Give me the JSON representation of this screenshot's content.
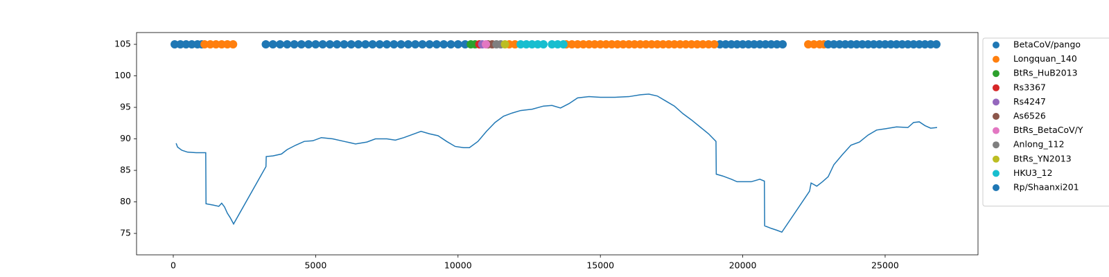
{
  "chart_data": {
    "type": "line",
    "color": "#1f77b4",
    "x": [
      100,
      150,
      300,
      500,
      800,
      1140,
      1150,
      1400,
      1600,
      1700,
      1800,
      1900,
      2000,
      2118,
      3255,
      3265,
      3500,
      3800,
      4000,
      4300,
      4600,
      4900,
      5200,
      5600,
      6000,
      6400,
      6800,
      7100,
      7500,
      7800,
      8100,
      8400,
      8700,
      9000,
      9300,
      9600,
      9900,
      10200,
      10400,
      10700,
      11000,
      11300,
      11600,
      11900,
      12200,
      12600,
      13000,
      13300,
      13600,
      13900,
      14200,
      14600,
      15000,
      15500,
      16000,
      16400,
      16700,
      17000,
      17300,
      17600,
      17900,
      18200,
      18500,
      18800,
      19060,
      19070,
      19300,
      19600,
      19800,
      20000,
      20300,
      20600,
      20760,
      20770,
      21000,
      21200,
      21373,
      22346,
      22400,
      22600,
      22800,
      23000,
      23200,
      23500,
      23800,
      24100,
      24400,
      24700,
      25000,
      25400,
      25800,
      26000,
      26200,
      26400,
      26600,
      26825
    ],
    "values": [
      89.3,
      88.7,
      88.2,
      87.9,
      87.8,
      87.8,
      79.7,
      79.5,
      79.3,
      79.8,
      79.2,
      78.2,
      77.5,
      76.5,
      85.6,
      87.2,
      87.3,
      87.6,
      88.3,
      89.0,
      89.6,
      89.7,
      90.2,
      90.0,
      89.6,
      89.2,
      89.5,
      90.0,
      90.0,
      89.8,
      90.2,
      90.7,
      91.2,
      90.8,
      90.5,
      89.6,
      88.8,
      88.6,
      88.6,
      89.6,
      91.2,
      92.6,
      93.6,
      94.1,
      94.5,
      94.7,
      95.2,
      95.3,
      94.9,
      95.6,
      96.5,
      96.7,
      96.6,
      96.6,
      96.7,
      97.0,
      97.1,
      96.8,
      96.0,
      95.2,
      94.0,
      93.0,
      91.9,
      90.8,
      89.6,
      84.4,
      84.1,
      83.6,
      83.2,
      83.2,
      83.2,
      83.6,
      83.3,
      76.2,
      75.8,
      75.5,
      75.2,
      81.7,
      83.0,
      82.5,
      83.2,
      84.0,
      85.9,
      87.5,
      89.0,
      89.5,
      90.6,
      91.4,
      91.6,
      91.9,
      91.8,
      92.6,
      92.7,
      92.1,
      91.7,
      91.8
    ],
    "scatter": [
      {
        "name": "BetaCoV/pango",
        "color": "#1f77b4",
        "x": [
          50,
          250,
          450,
          650,
          850,
          1000,
          3250,
          3500,
          3750,
          4000,
          4250,
          4500,
          4750,
          5000,
          5250,
          5500,
          5750,
          6000,
          6250,
          6500,
          6750,
          7000,
          7250,
          7500,
          7750,
          8000,
          8250,
          8500,
          8750,
          9000,
          9250,
          9500,
          9750,
          10000,
          10250,
          19200,
          19400,
          19600,
          19800,
          20000,
          20200,
          20400,
          20600,
          20800,
          21000,
          21200,
          21400
        ],
        "values": [
          105,
          105,
          105,
          105,
          105,
          105,
          105,
          105,
          105,
          105,
          105,
          105,
          105,
          105,
          105,
          105,
          105,
          105,
          105,
          105,
          105,
          105,
          105,
          105,
          105,
          105,
          105,
          105,
          105,
          105,
          105,
          105,
          105,
          105,
          105,
          105,
          105,
          105,
          105,
          105,
          105,
          105,
          105,
          105,
          105,
          105,
          105
        ]
      },
      {
        "name": "Longquan_140",
        "color": "#ff7f0e",
        "x": [
          1100,
          1300,
          1500,
          1700,
          1900,
          2100,
          11800,
          12000,
          13800,
          14000,
          14200,
          14400,
          14600,
          14800,
          15000,
          15200,
          15400,
          15600,
          15800,
          16000,
          16200,
          16400,
          16600,
          16800,
          17000,
          17200,
          17400,
          17600,
          17800,
          18000,
          18200,
          18400,
          18600,
          18800,
          19000,
          22300,
          22500,
          22700,
          22850
        ],
        "values": [
          105,
          105,
          105,
          105,
          105,
          105,
          105,
          105,
          105,
          105,
          105,
          105,
          105,
          105,
          105,
          105,
          105,
          105,
          105,
          105,
          105,
          105,
          105,
          105,
          105,
          105,
          105,
          105,
          105,
          105,
          105,
          105,
          105,
          105,
          105,
          105,
          105,
          105,
          105
        ]
      },
      {
        "name": "BtRs_HuB2013",
        "color": "#2ca02c",
        "x": [
          10450,
          10600
        ],
        "values": [
          105,
          105
        ]
      },
      {
        "name": "Rs3367",
        "color": "#d62728",
        "x": [
          10750
        ],
        "values": [
          105
        ]
      },
      {
        "name": "Rs4247",
        "color": "#9467bd",
        "x": [
          10850
        ],
        "values": [
          105
        ]
      },
      {
        "name": "As6526",
        "color": "#8c564b",
        "x": [
          11050,
          11200
        ],
        "values": [
          105,
          105
        ]
      },
      {
        "name": "BtRs_BetaCoV/Y",
        "color": "#e377c2",
        "x": [
          10980
        ],
        "values": [
          105
        ]
      },
      {
        "name": "Anlong_112",
        "color": "#7f7f7f",
        "x": [
          11350,
          11500
        ],
        "values": [
          105,
          105
        ]
      },
      {
        "name": "BtRs_YN2013",
        "color": "#bcbd22",
        "x": [
          11650
        ],
        "values": [
          105
        ]
      },
      {
        "name": "HKU3_12",
        "color": "#17becf",
        "x": [
          12200,
          12400,
          12600,
          12800,
          13000,
          13300,
          13500,
          13700
        ],
        "values": [
          105,
          105,
          105,
          105,
          105,
          105,
          105,
          105
        ]
      },
      {
        "name": "Rp/Shaanxi201",
        "color": "#1f77b4",
        "x": [
          23000,
          23200,
          23400,
          23600,
          23800,
          24000,
          24200,
          24400,
          24600,
          24800,
          25000,
          25200,
          25400,
          25600,
          25800,
          26000,
          26200,
          26400,
          26600,
          26800
        ],
        "values": [
          105,
          105,
          105,
          105,
          105,
          105,
          105,
          105,
          105,
          105,
          105,
          105,
          105,
          105,
          105,
          105,
          105,
          105,
          105,
          105
        ]
      }
    ],
    "xlim": [
      -1290,
      28262
    ],
    "ylim": [
      71.6,
      106.87
    ],
    "xticks": [
      0,
      5000,
      10000,
      15000,
      20000,
      25000
    ],
    "yticks": [
      75,
      80,
      85,
      90,
      95,
      100,
      105
    ],
    "grid": false,
    "legend": "outside right"
  }
}
